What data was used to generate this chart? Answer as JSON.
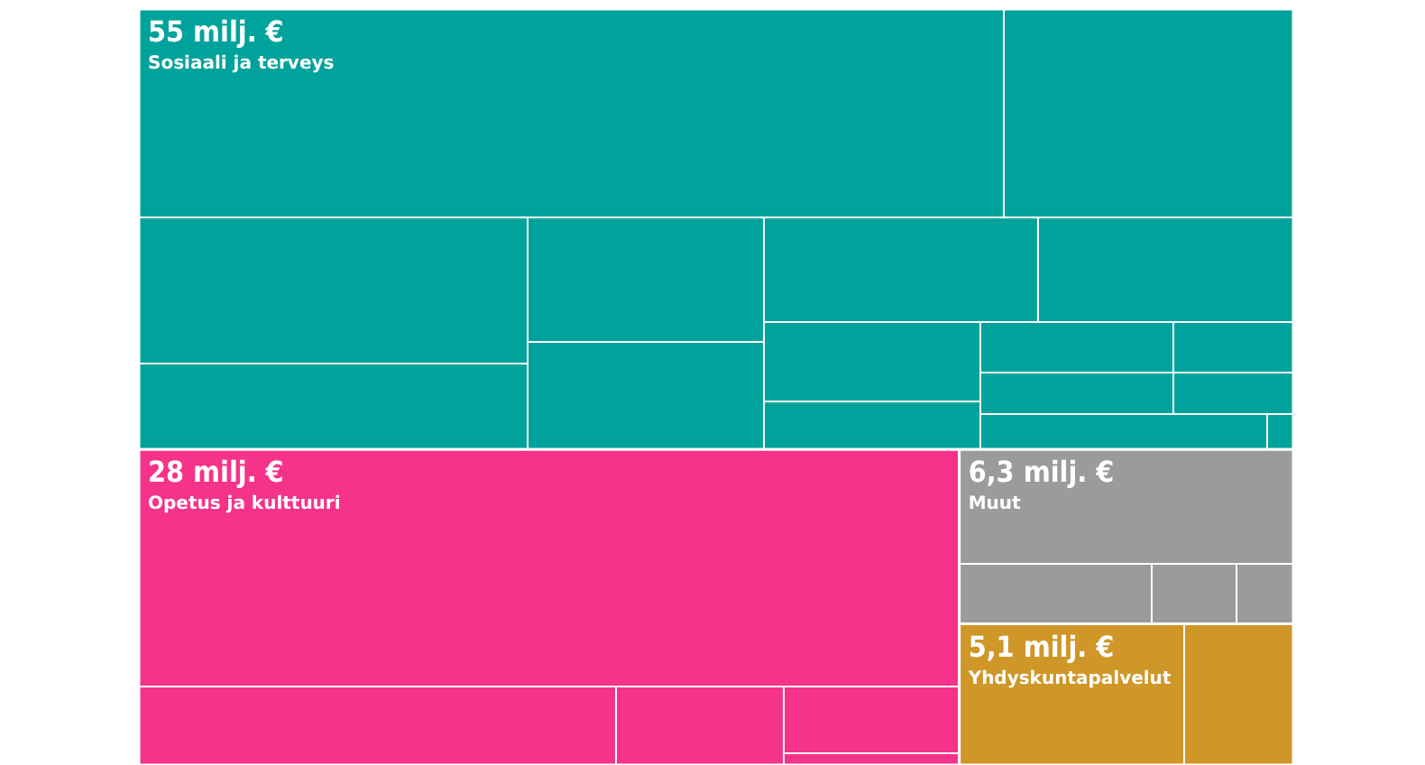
{
  "chart_data": {
    "type": "other",
    "categories": [
      "Sosiaali ja terveys",
      "Opetus ja kulttuuri",
      "Muut",
      "Yhdyskuntapalvelut"
    ],
    "values": [
      55,
      28,
      6.3,
      5.1
    ],
    "value_labels": [
      "55 milj. €",
      "28 milj. €",
      "6,3 milj. €",
      "5,1 milj. €"
    ],
    "colors": [
      "#00a39b",
      "#f5338a",
      "#9b9b9b",
      "#cf9628"
    ]
  }
}
